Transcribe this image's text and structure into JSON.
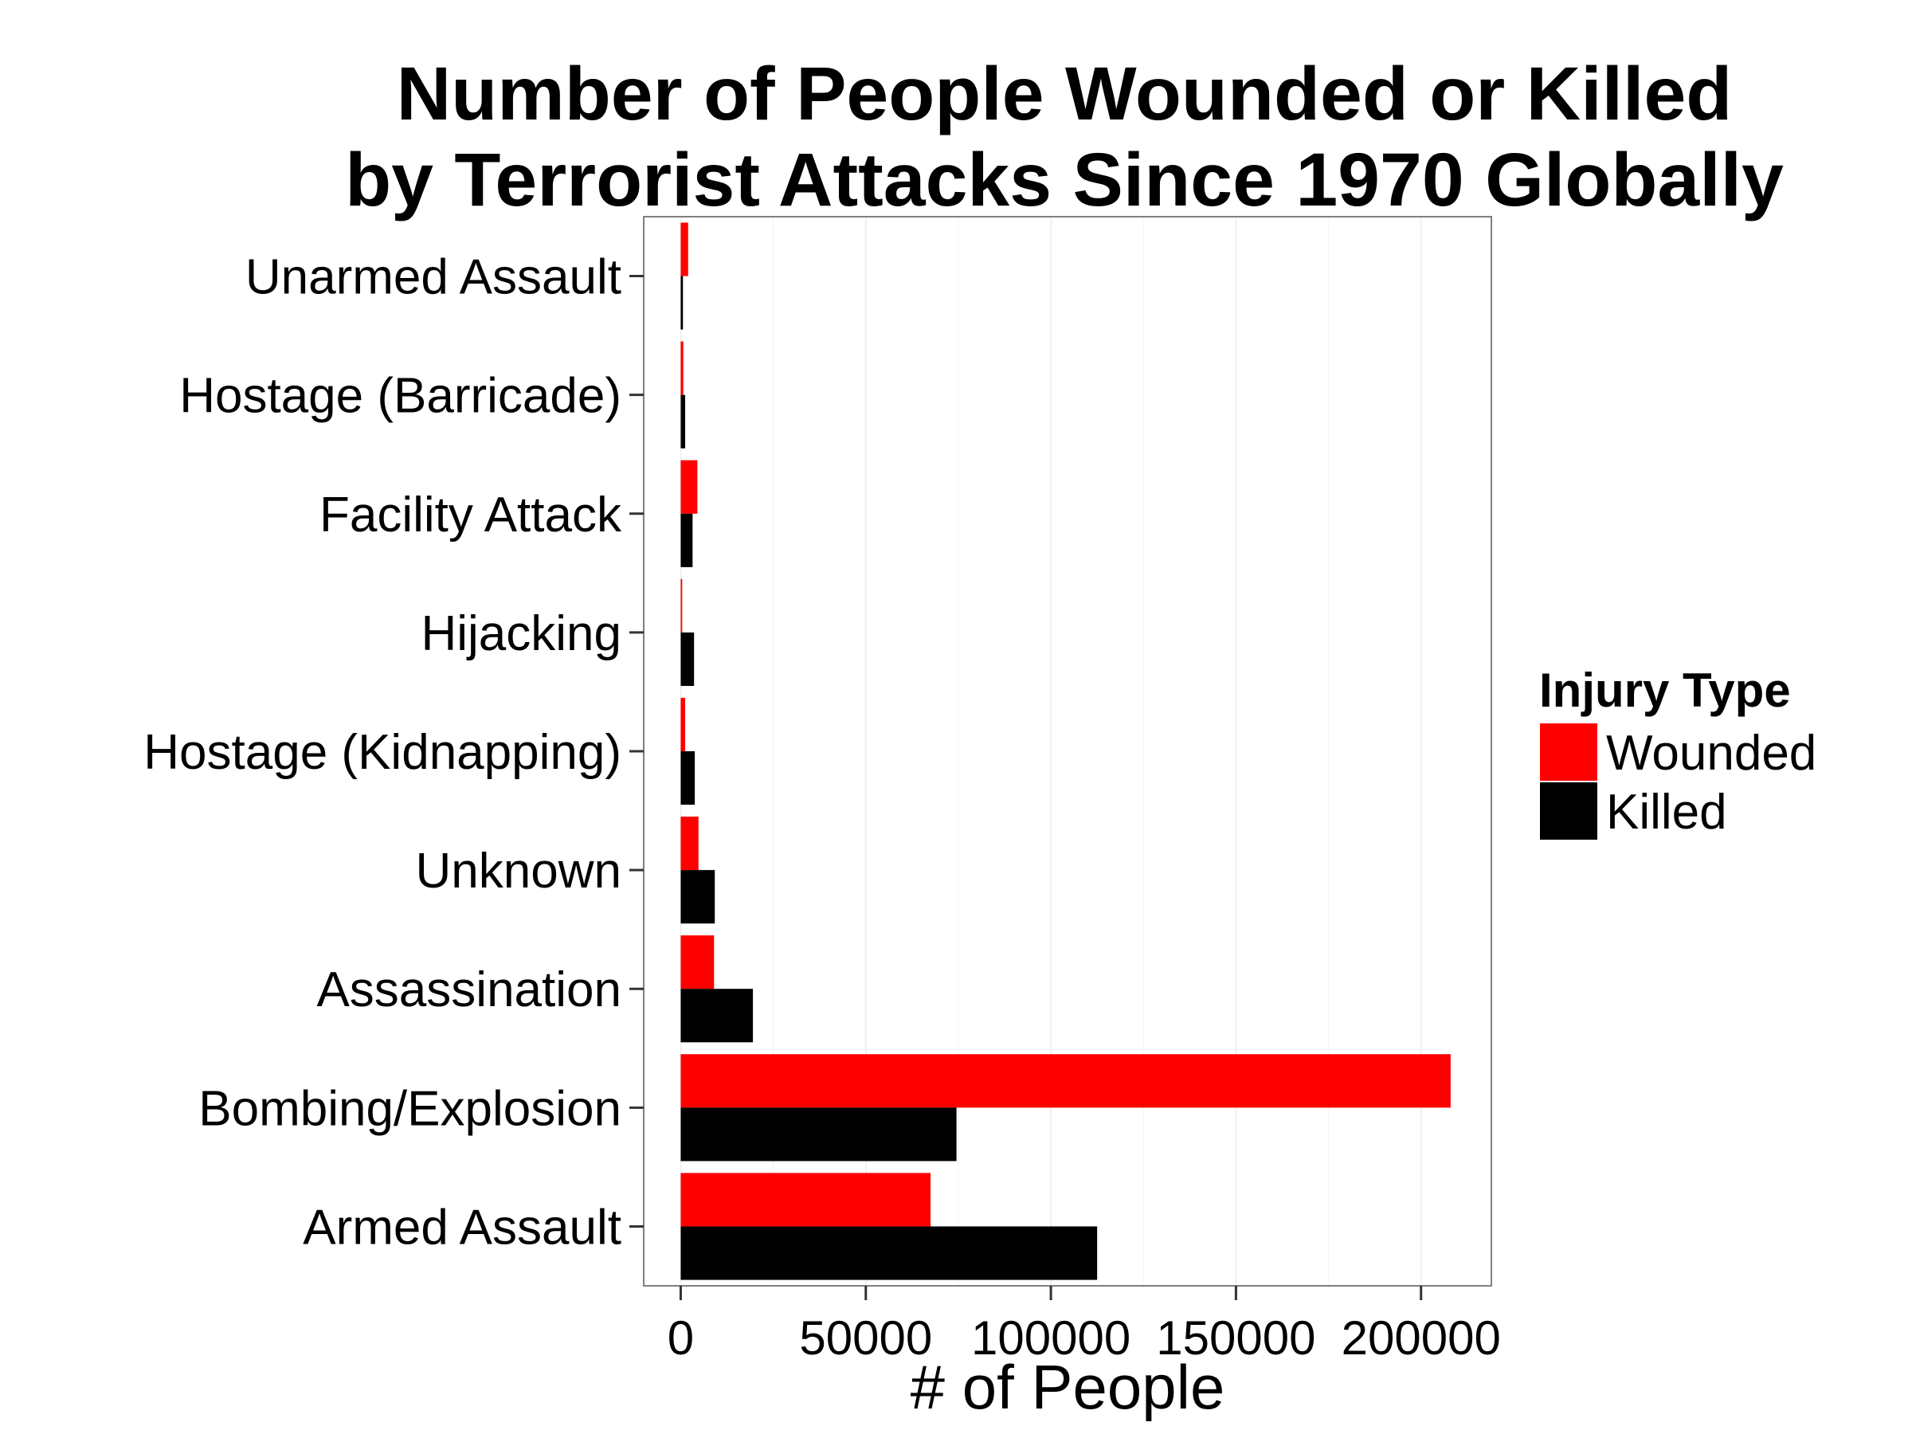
{
  "chart_data": {
    "type": "bar",
    "orientation": "horizontal",
    "title": [
      "Number of People Wounded or Killed",
      "by Terrorist Attacks Since 1970 Globally"
    ],
    "xlabel": "# of People",
    "ylabel": "",
    "xlim": [
      -10000,
      219000
    ],
    "x_ticks": [
      0,
      50000,
      100000,
      150000,
      200000
    ],
    "x_tick_labels": [
      "0",
      "50000",
      "100000",
      "150000",
      "200000"
    ],
    "categories": [
      "Unarmed Assault",
      "Hostage (Barricade)",
      "Facility Attack",
      "Hijacking",
      "Hostage (Kidnapping)",
      "Unknown",
      "Assassination",
      "Bombing/Explosion",
      "Armed Assault"
    ],
    "series": [
      {
        "name": "Wounded",
        "color": "#ff0000",
        "values": [
          2000,
          700,
          4500,
          400,
          1200,
          4800,
          9000,
          208000,
          67500
        ]
      },
      {
        "name": "Killed",
        "color": "#000000",
        "values": [
          600,
          1200,
          3200,
          3600,
          3800,
          9200,
          19500,
          74500,
          112500
        ]
      }
    ],
    "grid": true,
    "legend": {
      "title": "Injury Type",
      "position": "right"
    }
  }
}
